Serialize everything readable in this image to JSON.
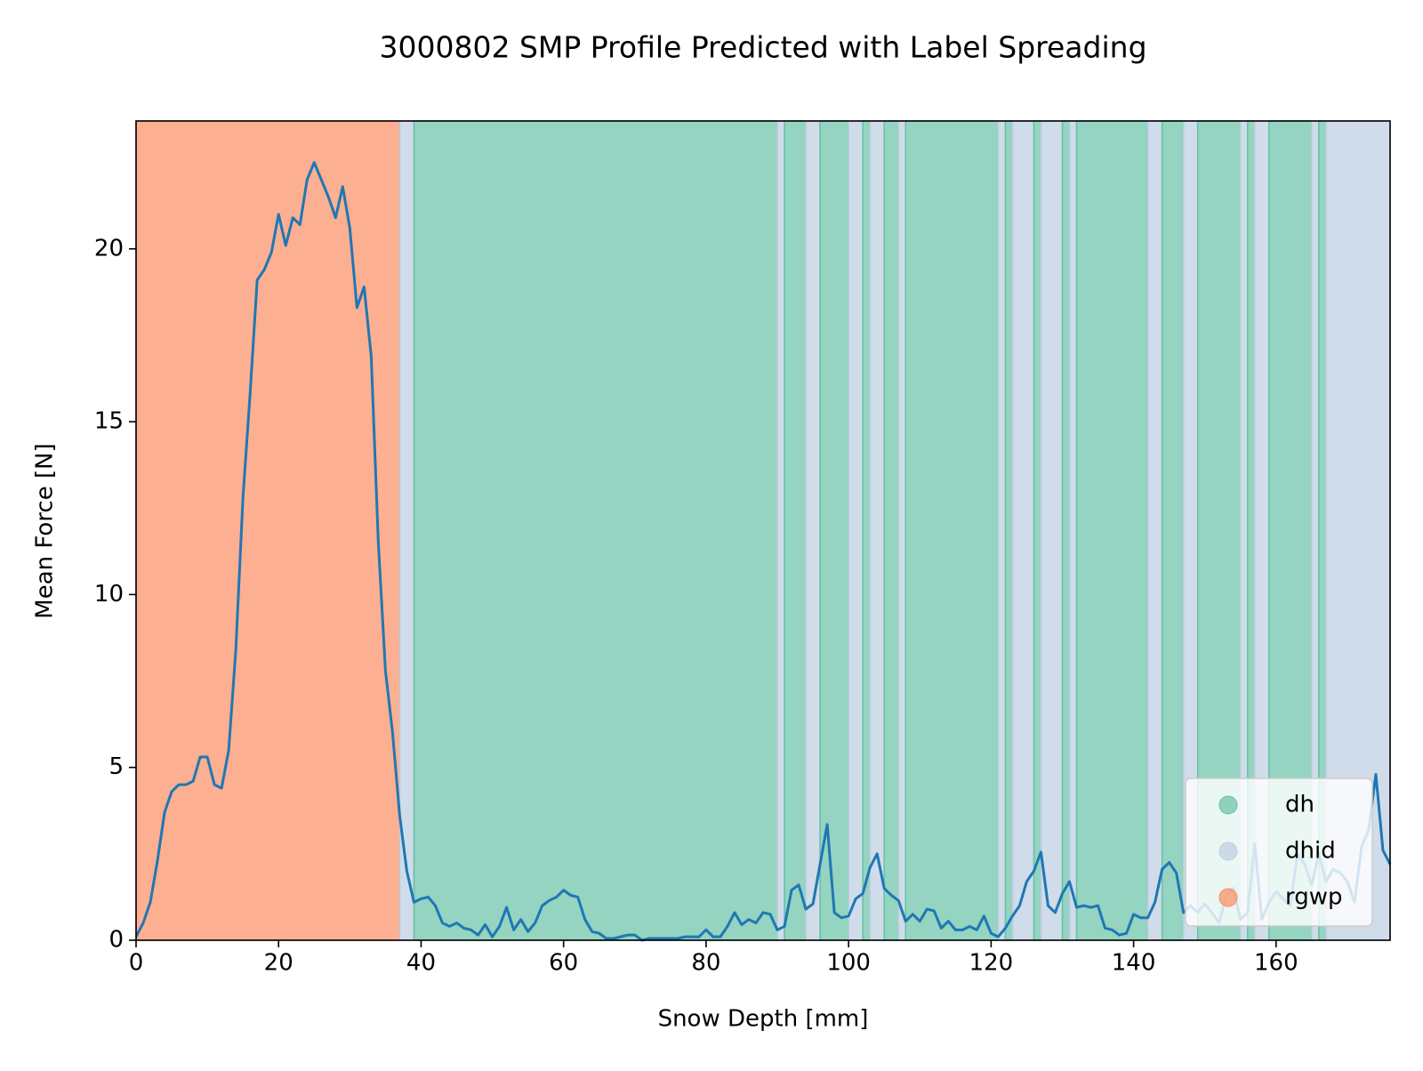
{
  "chart_data": {
    "type": "line",
    "title": "3000802 SMP Profile Predicted with Label Spreading",
    "xlabel": "Snow Depth [mm]",
    "ylabel": "Mean Force [N]",
    "xlim": [
      0,
      176
    ],
    "ylim": [
      0,
      23.7
    ],
    "xticks": [
      0,
      20,
      40,
      60,
      80,
      100,
      120,
      140,
      160
    ],
    "yticks": [
      0,
      5,
      10,
      15,
      20
    ],
    "legend": "lower right",
    "classes": [
      {
        "name": "dh",
        "color": "#66c2a5"
      },
      {
        "name": "dhid",
        "color": "#bccde0"
      },
      {
        "name": "rgwp",
        "color": "#fc8d62"
      }
    ],
    "bands": [
      {
        "start": 0,
        "end": 37,
        "class": "rgwp"
      },
      {
        "start": 37,
        "end": 39,
        "class": "dhid"
      },
      {
        "start": 39,
        "end": 90,
        "class": "dh"
      },
      {
        "start": 90,
        "end": 91,
        "class": "dhid"
      },
      {
        "start": 91,
        "end": 94,
        "class": "dh"
      },
      {
        "start": 94,
        "end": 96,
        "class": "dhid"
      },
      {
        "start": 96,
        "end": 100,
        "class": "dh"
      },
      {
        "start": 100,
        "end": 102,
        "class": "dhid"
      },
      {
        "start": 102,
        "end": 103,
        "class": "dh"
      },
      {
        "start": 103,
        "end": 105,
        "class": "dhid"
      },
      {
        "start": 105,
        "end": 107,
        "class": "dh"
      },
      {
        "start": 107,
        "end": 108,
        "class": "dhid"
      },
      {
        "start": 108,
        "end": 121,
        "class": "dh"
      },
      {
        "start": 121,
        "end": 122,
        "class": "dhid"
      },
      {
        "start": 122,
        "end": 123,
        "class": "dh"
      },
      {
        "start": 123,
        "end": 126,
        "class": "dhid"
      },
      {
        "start": 126,
        "end": 127,
        "class": "dh"
      },
      {
        "start": 127,
        "end": 130,
        "class": "dhid"
      },
      {
        "start": 130,
        "end": 131,
        "class": "dh"
      },
      {
        "start": 131,
        "end": 132,
        "class": "dhid"
      },
      {
        "start": 132,
        "end": 142,
        "class": "dh"
      },
      {
        "start": 142,
        "end": 144,
        "class": "dhid"
      },
      {
        "start": 144,
        "end": 147,
        "class": "dh"
      },
      {
        "start": 147,
        "end": 149,
        "class": "dhid"
      },
      {
        "start": 149,
        "end": 155,
        "class": "dh"
      },
      {
        "start": 155,
        "end": 156,
        "class": "dhid"
      },
      {
        "start": 156,
        "end": 157,
        "class": "dh"
      },
      {
        "start": 157,
        "end": 159,
        "class": "dhid"
      },
      {
        "start": 159,
        "end": 165,
        "class": "dh"
      },
      {
        "start": 165,
        "end": 166,
        "class": "dhid"
      },
      {
        "start": 166,
        "end": 167,
        "class": "dh"
      },
      {
        "start": 167,
        "end": 176,
        "class": "dhid"
      }
    ],
    "x": [
      0,
      1,
      2,
      3,
      4,
      5,
      6,
      7,
      8,
      9,
      10,
      11,
      12,
      13,
      14,
      15,
      16,
      17,
      18,
      19,
      20,
      21,
      22,
      23,
      24,
      25,
      26,
      27,
      28,
      29,
      30,
      31,
      32,
      33,
      34,
      35,
      36,
      37,
      38,
      39,
      40,
      41,
      42,
      43,
      44,
      45,
      46,
      47,
      48,
      49,
      50,
      51,
      52,
      53,
      54,
      55,
      56,
      57,
      58,
      59,
      60,
      61,
      62,
      63,
      64,
      65,
      66,
      67,
      68,
      69,
      70,
      71,
      72,
      73,
      74,
      75,
      76,
      77,
      78,
      79,
      80,
      81,
      82,
      83,
      84,
      85,
      86,
      87,
      88,
      89,
      90,
      91,
      92,
      93,
      94,
      95,
      96,
      97,
      98,
      99,
      100,
      101,
      102,
      103,
      104,
      105,
      106,
      107,
      108,
      109,
      110,
      111,
      112,
      113,
      114,
      115,
      116,
      117,
      118,
      119,
      120,
      121,
      122,
      123,
      124,
      125,
      126,
      127,
      128,
      129,
      130,
      131,
      132,
      133,
      134,
      135,
      136,
      137,
      138,
      139,
      140,
      141,
      142,
      143,
      144,
      145,
      146,
      147,
      148,
      149,
      150,
      151,
      152,
      153,
      154,
      155,
      156,
      157,
      158,
      159,
      160,
      161,
      162,
      163,
      164,
      165,
      166,
      167,
      168,
      169,
      170,
      171,
      172,
      173,
      174,
      175,
      176
    ],
    "series": [
      {
        "color": "#1f77b4",
        "values": [
          0.1,
          0.5,
          1.1,
          2.3,
          3.7,
          4.3,
          4.5,
          4.5,
          4.6,
          5.3,
          5.3,
          4.5,
          4.4,
          5.5,
          8.4,
          12.8,
          15.8,
          19.1,
          19.4,
          19.9,
          21.0,
          20.1,
          20.9,
          20.7,
          22.0,
          22.5,
          22.0,
          21.5,
          20.9,
          21.8,
          20.6,
          18.3,
          18.9,
          16.9,
          11.5,
          7.8,
          6.0,
          3.6,
          2.0,
          1.1,
          1.2,
          1.25,
          1.0,
          0.5,
          0.4,
          0.5,
          0.35,
          0.3,
          0.15,
          0.45,
          0.1,
          0.4,
          0.95,
          0.3,
          0.6,
          0.25,
          0.5,
          1.0,
          1.15,
          1.25,
          1.45,
          1.3,
          1.25,
          0.6,
          0.25,
          0.2,
          0.05,
          0.05,
          0.1,
          0.15,
          0.15,
          0.0,
          0.05,
          0.05,
          0.05,
          0.05,
          0.05,
          0.1,
          0.1,
          0.1,
          0.3,
          0.1,
          0.1,
          0.4,
          0.8,
          0.45,
          0.6,
          0.5,
          0.8,
          0.75,
          0.3,
          0.4,
          1.45,
          1.6,
          0.9,
          1.05,
          2.2,
          3.35,
          0.8,
          0.65,
          0.7,
          1.2,
          1.35,
          2.1,
          2.5,
          1.5,
          1.3,
          1.15,
          0.55,
          0.75,
          0.55,
          0.9,
          0.85,
          0.35,
          0.55,
          0.3,
          0.3,
          0.4,
          0.3,
          0.7,
          0.2,
          0.1,
          0.35,
          0.7,
          1.0,
          1.7,
          2.0,
          2.55,
          1.0,
          0.8,
          1.35,
          1.7,
          0.95,
          1.0,
          0.95,
          1.0,
          0.35,
          0.3,
          0.15,
          0.2,
          0.75,
          0.65,
          0.65,
          1.1,
          2.05,
          2.25,
          1.95,
          0.8,
          1.0,
          0.8,
          1.05,
          0.8,
          0.5,
          1.3,
          1.5,
          0.6,
          0.8,
          2.8,
          0.6,
          1.1,
          1.4,
          1.2,
          1.0,
          2.5,
          2.2,
          1.6,
          2.5,
          1.7,
          2.05,
          1.95,
          1.7,
          1.1,
          2.7,
          3.2,
          4.8,
          2.6,
          2.2
        ]
      }
    ]
  }
}
